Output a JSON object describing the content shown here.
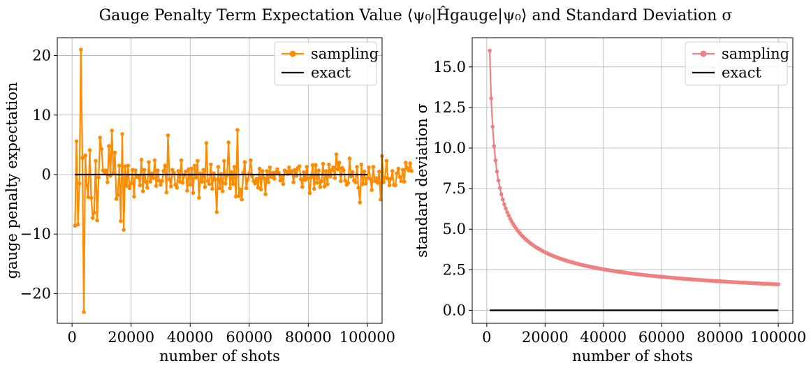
{
  "figure": {
    "title": "Gauge Penalty Term Expectation Value ⟨ψ₀|Ĥgauge|ψ₀⟩ and Standard Deviation σ"
  },
  "chart_data": [
    {
      "type": "line",
      "xlabel": "number of shots",
      "ylabel": "gauge penalty expectation",
      "xlim": [
        -5000,
        105000
      ],
      "ylim": [
        -25,
        23
      ],
      "xticks": [
        0,
        20000,
        40000,
        60000,
        80000,
        100000
      ],
      "xtick_labels": [
        "0",
        "20000",
        "40000",
        "60000",
        "80000",
        "100000"
      ],
      "yticks": [
        -20,
        -10,
        0,
        10,
        20
      ],
      "ytick_labels": [
        "−20",
        "−10",
        "0",
        "10",
        "20"
      ],
      "grid": true,
      "legend_placement": "top-right",
      "series": [
        {
          "name": "sampling",
          "color": "#ff8c00",
          "marker": "circle",
          "x_start": 1000,
          "x_step": 500,
          "values": [
            -8.6,
            5.6,
            -8.4,
            -1.5,
            21.0,
            2.8,
            -23.1,
            3.2,
            -1.7,
            -3.8,
            4.1,
            -3.9,
            -7.3,
            -6.4,
            2.3,
            -7.7,
            -0.5,
            6.2,
            4.3,
            0.7,
            0.4,
            0.7,
            -1.3,
            4.8,
            -0.2,
            7.4,
            0.3,
            3.7,
            -4.1,
            -3.4,
            1.5,
            -7.8,
            6.8,
            -9.3,
            1.4,
            -1.9,
            1.5,
            -2.3,
            -1.5,
            0.8,
            -3.7,
            0.7,
            -0.4,
            -0.3,
            -1.8,
            2.5,
            -2.8,
            0.8,
            -1.2,
            -2.2,
            2.1,
            -1.2,
            0.2,
            -0.6,
            2.4,
            -1.9,
            0.7,
            -1.0,
            -1.7,
            -1.1,
            0.6,
            1.5,
            -3.0,
            6.6,
            -0.8,
            -2.0,
            0.8,
            0.3,
            -1.7,
            -2.2,
            0.6,
            -1.2,
            2.4,
            -1.4,
            -0.1,
            0.5,
            -2.7,
            0.9,
            -1.7,
            1.0,
            -3.1,
            1.5,
            -0.5,
            2.3,
            -3.9,
            0.2,
            -1.2,
            0.8,
            -2.1,
            5.3,
            -1.1,
            -1.6,
            1.7,
            -2.4,
            0.2,
            -0.8,
            -6.3,
            1.3,
            -2.3,
            0.1,
            -2.8,
            2.3,
            -1.5,
            -0.1,
            5.4,
            -2.3,
            0.4,
            -1.6,
            1.3,
            -3.7,
            7.5,
            -3.6,
            -2.5,
            -4.2,
            0.3,
            2.1,
            -2.3,
            -0.8,
            0.2,
            2.4,
            -0.3,
            -1.1,
            -1.5,
            -0.7,
            -2.2,
            1.0,
            -2.5,
            0.6,
            -0.6,
            -3.3,
            0.6,
            -1.3,
            1.2,
            -0.4,
            0.3,
            -0.7,
            0.4,
            0.9,
            0.3,
            -1.0,
            -0.2,
            -1.6,
            0.7,
            0.5,
            0.1,
            1.2,
            0.3,
            0.6,
            -1.3,
            0.8,
            -0.2,
            1.1,
            1.4,
            -0.8,
            -2.1,
            0.4,
            -0.9,
            1.3,
            -0.6,
            -3.1,
            -0.4,
            1.6,
            -2.4,
            1.6,
            -1.4,
            0.7,
            -2.1,
            -1.1,
            1.8,
            -2.0,
            0.6,
            -1.6,
            1.7,
            -0.3,
            0.8,
            1.2,
            -0.6,
            3.4,
            0.9,
            2.0,
            -1.1,
            1.1,
            0.7,
            -1.0,
            -1.7,
            -1.4,
            2.7,
            -0.3,
            0.4,
            -1.0,
            -1.3,
            1.3,
            -2.2,
            -4.7,
            1.7,
            -1.6,
            0.5,
            -1.5,
            -0.6,
            1.2,
            -0.7,
            -2.6,
            1.3,
            -1.1,
            -0.6,
            -1.4,
            0.5,
            -4.2,
            3.1,
            -1.3,
            -0.5,
            2.3,
            -0.7,
            -1.8,
            -0.7,
            0.6,
            -1.7,
            -1.8,
            0.2,
            1.0,
            -0.4,
            -1.1,
            0.8,
            -1.2,
            2.0,
            1.1,
            0.7,
            1.9,
            0.6
          ]
        },
        {
          "name": "exact",
          "color": "#000000",
          "marker": "none",
          "x": [
            1000,
            100000
          ],
          "values": [
            0,
            0
          ]
        }
      ]
    },
    {
      "type": "line",
      "xlabel": "number of shots",
      "ylabel": "standard deviation σ",
      "xlim": [
        -5000,
        105000
      ],
      "ylim": [
        -0.8,
        16.8
      ],
      "xticks": [
        0,
        20000,
        40000,
        60000,
        80000,
        100000
      ],
      "xtick_labels": [
        "0",
        "20000",
        "40000",
        "60000",
        "80000",
        "100000"
      ],
      "yticks": [
        0,
        2.5,
        5,
        7.5,
        10,
        12.5,
        15
      ],
      "ytick_labels": [
        "0.0",
        "2.5",
        "5.0",
        "7.5",
        "10.0",
        "12.5",
        "15.0"
      ],
      "grid": true,
      "legend_placement": "top-right",
      "series": [
        {
          "name": "sampling",
          "color": "#f08080",
          "marker": "circle",
          "x_start": 1000,
          "x_step": 500,
          "x_end": 100000,
          "formula_constant": 506.0,
          "values_rule": "sigma(x) = 506.0 / sqrt(x)"
        },
        {
          "name": "exact",
          "color": "#000000",
          "marker": "none",
          "x": [
            1000,
            100000
          ],
          "values": [
            0,
            0
          ]
        }
      ]
    }
  ]
}
